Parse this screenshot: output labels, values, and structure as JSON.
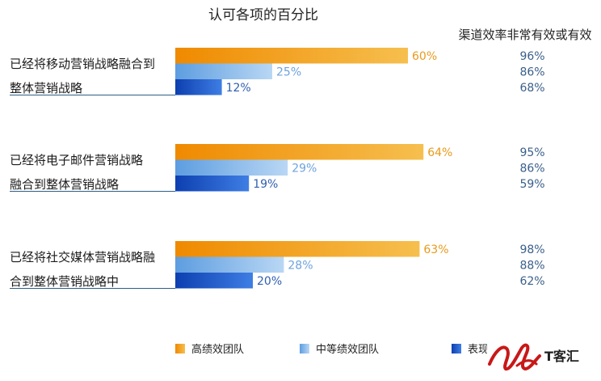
{
  "chart_data": {
    "type": "bar",
    "orientation": "horizontal",
    "title": "认可各项的百分比",
    "categories": [
      [
        "已经将移动营销战略融合到",
        "整体营销战略"
      ],
      [
        "已经将电子邮件营销战略",
        "融合到整体营销战略"
      ],
      [
        "已经将社交媒体营销战略融",
        "合到整体营销战略中"
      ]
    ],
    "series": [
      {
        "name": "高绩效团队",
        "values": [
          60,
          64,
          63
        ],
        "labels": [
          "60%",
          "64%",
          "63%"
        ],
        "color": "#f0a020",
        "label_color": "#e89a1c"
      },
      {
        "name": "中等绩效团队",
        "values": [
          25,
          29,
          28
        ],
        "labels": [
          "25%",
          "29%",
          "28%"
        ],
        "color": "#8dbcec",
        "label_color": "#6fa3dd"
      },
      {
        "name": "表现",
        "values": [
          12,
          19,
          20
        ],
        "labels": [
          "12%",
          "19%",
          "20%"
        ],
        "color": "#1f5fcf",
        "label_color": "#2f5fb0"
      }
    ],
    "side_column": {
      "title": "渠道效率非常有效或有效",
      "values": [
        [
          "96%",
          "86%",
          "68%"
        ],
        [
          "95%",
          "86%",
          "59%"
        ],
        [
          "98%",
          "88%",
          "62%"
        ]
      ]
    },
    "xlim": [
      0,
      100
    ],
    "legend_position": "bottom"
  },
  "watermark": {
    "text": "T客汇"
  }
}
